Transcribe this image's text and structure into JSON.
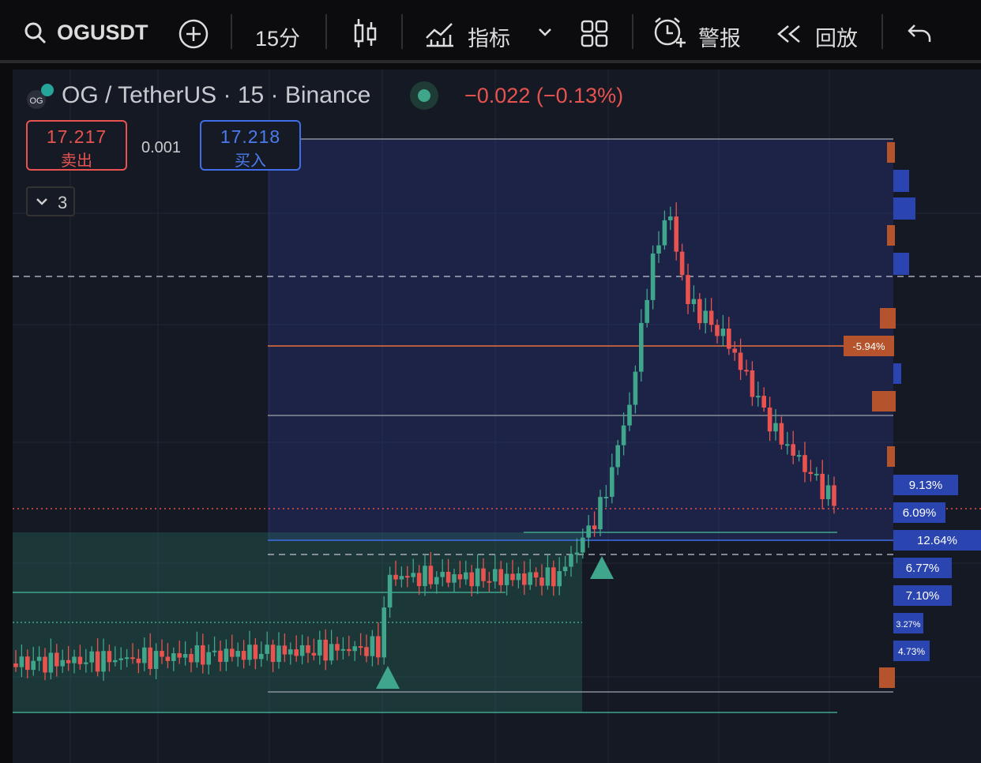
{
  "toolbar": {
    "symbol": "OGUSDT",
    "interval": "15分",
    "indicators": "指标",
    "alerts": "警报",
    "replay": "回放"
  },
  "legend": {
    "title": "OG / TetherUS · 15 · Binance",
    "change": "−0.022 (−0.13%)"
  },
  "order": {
    "sell_price": "17.217",
    "sell_label": "卖出",
    "spread": "0.001",
    "buy_price": "17.218",
    "buy_label": "买入"
  },
  "collapse_count": "3",
  "price_labels": [
    "-5.94%",
    "9.13%",
    "6.09%",
    "12.64%",
    "6.77%",
    "7.10%",
    "3.27%",
    "4.73%"
  ]
}
